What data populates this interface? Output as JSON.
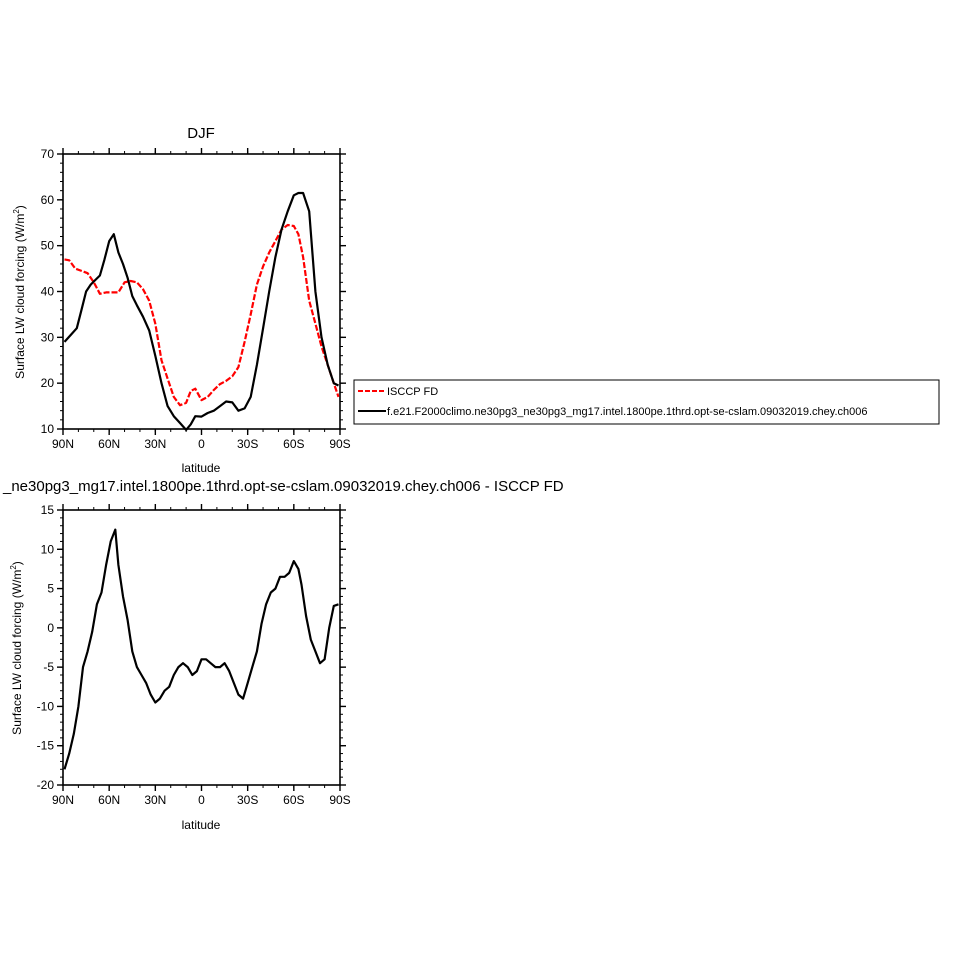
{
  "chart_data": [
    {
      "type": "line",
      "title": "DJF",
      "xlabel": "latitude",
      "ylabel": "Surface LW cloud forcing (W/m",
      "ylabel_sup": "2",
      "ylabel_end": ")",
      "xlim": [
        -90,
        90
      ],
      "ylim": [
        10,
        70
      ],
      "yticks": [
        10,
        20,
        30,
        40,
        50,
        60,
        70
      ],
      "xticks": [
        -90,
        -60,
        -30,
        0,
        30,
        60,
        90
      ],
      "xticklabels": [
        "90N",
        "60N",
        "30N",
        "0",
        "30S",
        "60S",
        "90S"
      ],
      "legend_position": "right",
      "series": [
        {
          "name": "ISCCP FD",
          "color": "#ff0000",
          "dash": "dashed",
          "x": [
            -89,
            -86,
            -82,
            -78,
            -74,
            -70,
            -66,
            -62,
            -58,
            -54,
            -50,
            -46,
            -42,
            -38,
            -34,
            -30,
            -26,
            -22,
            -18,
            -14,
            -10,
            -7,
            -4,
            0,
            4,
            8,
            12,
            16,
            20,
            24,
            28,
            32,
            36,
            40,
            44,
            48,
            52,
            56,
            60,
            63,
            66,
            70,
            74,
            78,
            82,
            86,
            89
          ],
          "values": [
            47,
            46.8,
            45,
            44.5,
            44,
            42,
            39.5,
            39.8,
            39.8,
            39.8,
            42,
            42.3,
            42,
            40.5,
            38,
            33,
            25,
            21,
            17,
            15.2,
            15.7,
            18.3,
            18.8,
            16.3,
            17,
            18.5,
            19.8,
            20.5,
            21.5,
            23.5,
            29,
            35,
            41.5,
            45.5,
            48.5,
            51,
            53.5,
            54.5,
            54.3,
            52.5,
            47.5,
            38,
            33,
            28,
            24,
            20,
            17
          ]
        },
        {
          "name": "f.e21.F2000climo.ne30pg3_ne30pg3_mg17.intel.1800pe.1thrd.opt-se-cslam.09032019.chey.ch006",
          "color": "#000000",
          "dash": "solid",
          "x": [
            -89,
            -85,
            -81,
            -78,
            -75,
            -72,
            -69,
            -66,
            -63,
            -60,
            -57,
            -54,
            -51,
            -48,
            -45,
            -42,
            -38,
            -34,
            -30,
            -26,
            -22,
            -18,
            -14,
            -10,
            -7,
            -4,
            0,
            4,
            8,
            12,
            16,
            20,
            24,
            28,
            32,
            36,
            40,
            44,
            48,
            52,
            56,
            60,
            63,
            66,
            70,
            74,
            78,
            82,
            86,
            89
          ],
          "values": [
            29,
            30.5,
            32,
            36,
            40,
            41.5,
            42.5,
            43.5,
            47,
            51,
            52.5,
            48.5,
            46,
            43,
            39,
            37,
            34.5,
            31.5,
            26,
            20,
            15,
            12.8,
            11.3,
            9.8,
            11,
            12.8,
            12.7,
            13.5,
            14,
            15,
            16,
            15.8,
            14,
            14.5,
            17,
            24,
            32,
            40,
            47.5,
            53.5,
            57.5,
            61,
            61.5,
            61.5,
            57.5,
            40,
            30,
            24,
            20,
            19.5
          ]
        }
      ]
    },
    {
      "type": "line",
      "title": "_ne30pg3_mg17.intel.1800pe.1thrd.opt-se-cslam.09032019.chey.ch006 - ISCCP FD",
      "xlabel": "latitude",
      "ylabel": "Surface LW cloud forcing (W/m",
      "ylabel_sup": "2",
      "ylabel_end": ")",
      "xlim": [
        -90,
        90
      ],
      "ylim": [
        -20,
        15
      ],
      "yticks": [
        -20,
        -15,
        -10,
        -5,
        0,
        5,
        10,
        15
      ],
      "xticks": [
        -90,
        -60,
        -30,
        0,
        30,
        60,
        90
      ],
      "xticklabels": [
        "90N",
        "60N",
        "30N",
        "0",
        "30S",
        "60S",
        "90S"
      ],
      "series": [
        {
          "color": "#000000",
          "dash": "solid",
          "x": [
            -89,
            -86,
            -83,
            -80,
            -77,
            -74,
            -71,
            -68,
            -65,
            -62,
            -59,
            -56,
            -54,
            -51,
            -48,
            -45,
            -42,
            -39,
            -36,
            -33,
            -30,
            -27,
            -24,
            -21,
            -18,
            -15,
            -12,
            -9,
            -6,
            -3,
            0,
            3,
            6,
            9,
            12,
            15,
            18,
            21,
            24,
            27,
            30,
            33,
            36,
            39,
            42,
            45,
            48,
            51,
            54,
            57,
            60,
            63,
            65,
            68,
            71,
            74,
            77,
            80,
            83,
            86,
            89
          ],
          "values": [
            -18,
            -16,
            -13.5,
            -10,
            -5,
            -3,
            -0.5,
            3,
            4.5,
            8,
            11,
            12.5,
            8,
            4,
            1,
            -3,
            -5,
            -6,
            -7,
            -8.5,
            -9.5,
            -9,
            -8,
            -7.5,
            -6,
            -5,
            -4.5,
            -5,
            -6,
            -5.5,
            -4,
            -4,
            -4.5,
            -5,
            -5,
            -4.5,
            -5.5,
            -7,
            -8.5,
            -9,
            -7,
            -5,
            -3,
            0.5,
            3,
            4.5,
            5,
            6.5,
            6.5,
            7,
            8.5,
            7.5,
            5.5,
            1.5,
            -1.5,
            -3,
            -4.5,
            -4,
            0,
            2.8,
            3
          ]
        }
      ]
    }
  ]
}
